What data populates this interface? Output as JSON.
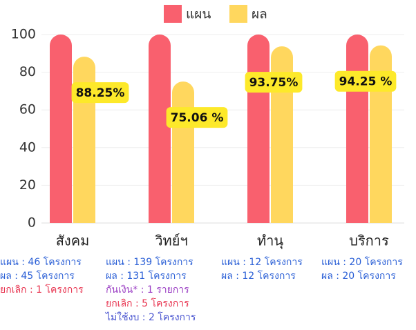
{
  "chart_data": {
    "type": "bar",
    "categories": [
      "สังคม",
      "วิทย์ฯ",
      "ทำนุ",
      "บริการ"
    ],
    "series": [
      {
        "name": "แผน",
        "color": "#f9606e",
        "values": [
          100,
          100,
          100,
          100
        ]
      },
      {
        "name": "ผล",
        "color": "#ffd75e",
        "values": [
          88.25,
          75.06,
          93.75,
          94.25
        ],
        "value_labels": [
          "88.25%",
          "75.06 %",
          "93.75%",
          "94.25 %"
        ]
      }
    ],
    "ylim": [
      0,
      100
    ],
    "yticks": [
      0,
      20,
      40,
      60,
      80,
      100
    ],
    "grid": true,
    "legend": "top",
    "annotations": [
      [
        {
          "text": "แผน : 46 โครงการ",
          "color": "#2a5fd6"
        },
        {
          "text": "ผล : 45 โครงการ",
          "color": "#2a5fd6"
        },
        {
          "text": "ยกเลิก : 1 โครงการ",
          "color": "#e8334f"
        }
      ],
      [
        {
          "text": "แผน : 139 โครงการ",
          "color": "#2a5fd6"
        },
        {
          "text": "ผล : 131 โครงการ",
          "color": "#2a5fd6"
        },
        {
          "text": "กันเงิน* : 1 รายการ",
          "color": "#9b3fc4"
        },
        {
          "text": "ยกเลิก : 5 โครงการ",
          "color": "#e8334f"
        },
        {
          "text": "ไม่ใช้งบ : 2 โครงการ",
          "color": "#4a55d0"
        }
      ],
      [
        {
          "text": "แผน : 12 โครงการ",
          "color": "#2a5fd6"
        },
        {
          "text": "ผล : 12 โครงการ",
          "color": "#2a5fd6"
        }
      ],
      [
        {
          "text": "แผน : 20 โครงการ",
          "color": "#2a5fd6"
        },
        {
          "text": "ผล : 20 โครงการ",
          "color": "#2a5fd6"
        }
      ]
    ]
  }
}
